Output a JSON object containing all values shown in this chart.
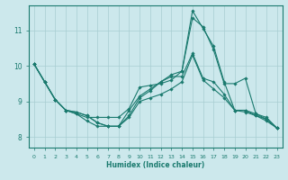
{
  "xlabel": "Humidex (Indice chaleur)",
  "bg_color": "#cce8ec",
  "line_color": "#1a7a6e",
  "grid_color": "#a8cdd1",
  "xlim": [
    -0.5,
    23.5
  ],
  "ylim": [
    7.7,
    11.7
  ],
  "yticks": [
    8,
    9,
    10,
    11
  ],
  "xticks": [
    0,
    1,
    2,
    3,
    4,
    5,
    6,
    7,
    8,
    9,
    10,
    11,
    12,
    13,
    14,
    15,
    16,
    17,
    18,
    19,
    20,
    21,
    22,
    23
  ],
  "lines": [
    {
      "x": [
        0,
        1,
        2,
        3,
        4,
        5,
        6,
        7,
        8,
        9,
        10,
        11,
        12,
        13,
        14,
        15,
        16,
        17,
        18,
        19,
        20,
        21,
        22,
        23
      ],
      "y": [
        10.05,
        9.55,
        9.05,
        8.75,
        8.65,
        8.45,
        8.3,
        8.3,
        8.3,
        8.75,
        9.15,
        9.35,
        9.55,
        9.75,
        9.85,
        11.55,
        11.05,
        10.55,
        9.55,
        8.75,
        8.75,
        8.6,
        8.45,
        8.25
      ]
    },
    {
      "x": [
        0,
        1,
        2,
        3,
        4,
        5,
        6,
        7,
        8,
        9,
        10,
        11,
        12,
        13,
        14,
        15,
        16,
        17,
        18,
        19,
        20,
        21,
        22,
        23
      ],
      "y": [
        10.05,
        9.55,
        9.05,
        8.75,
        8.65,
        8.55,
        8.55,
        8.55,
        8.55,
        8.8,
        9.4,
        9.45,
        9.5,
        9.6,
        9.85,
        11.35,
        11.1,
        10.45,
        9.5,
        9.5,
        9.65,
        8.65,
        8.5,
        8.25
      ]
    },
    {
      "x": [
        0,
        1,
        2,
        3,
        4,
        5,
        6,
        7,
        8,
        9,
        10,
        11,
        12,
        13,
        14,
        15,
        16,
        17,
        18,
        19,
        20,
        21,
        22,
        23
      ],
      "y": [
        10.05,
        9.55,
        9.05,
        8.75,
        8.7,
        8.6,
        8.4,
        8.3,
        8.3,
        8.6,
        9.1,
        9.3,
        9.55,
        9.7,
        9.7,
        10.35,
        9.65,
        9.55,
        9.2,
        8.75,
        8.75,
        8.65,
        8.55,
        8.25
      ]
    },
    {
      "x": [
        0,
        1,
        2,
        3,
        4,
        5,
        6,
        7,
        8,
        9,
        10,
        11,
        12,
        13,
        14,
        15,
        16,
        17,
        18,
        19,
        20,
        21,
        22,
        23
      ],
      "y": [
        10.05,
        9.55,
        9.05,
        8.75,
        8.7,
        8.6,
        8.4,
        8.3,
        8.3,
        8.55,
        9.0,
        9.1,
        9.2,
        9.35,
        9.55,
        10.3,
        9.6,
        9.35,
        9.1,
        8.75,
        8.7,
        8.6,
        8.5,
        8.25
      ]
    }
  ]
}
